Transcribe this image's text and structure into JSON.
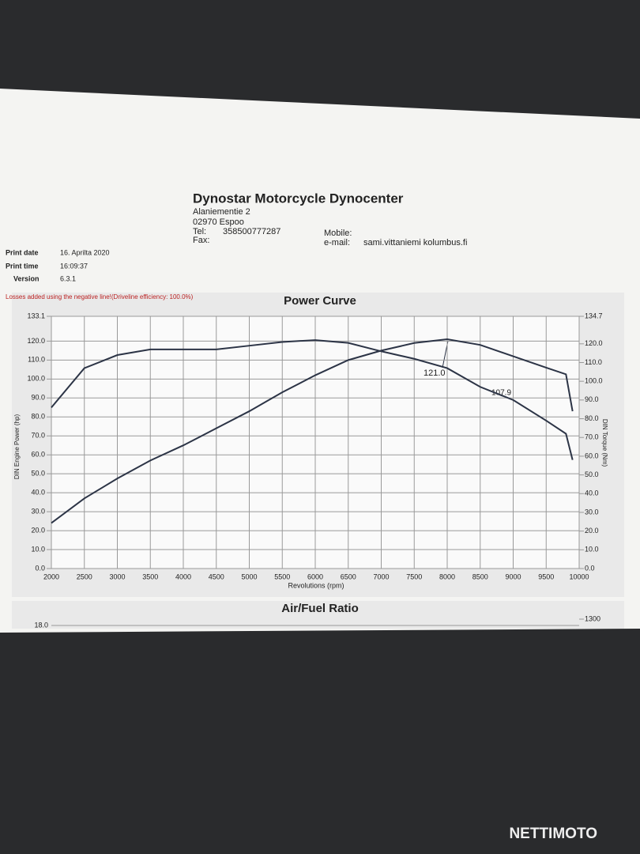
{
  "header": {
    "company": "Dynostar Motorcycle Dynocenter",
    "street": "Alaniementie  2",
    "city": "02970 Espoo",
    "tel_label": "Tel:",
    "tel": "358500777287",
    "fax_label": "Fax:",
    "mobile_label": "Mobile:",
    "email_label": "e-mail:",
    "email": "sami.vittaniemi kolumbus.fi"
  },
  "meta": {
    "rows": [
      [
        "Print date",
        "16. Aprilta 2020"
      ],
      [
        "Print time",
        "16:09:37"
      ],
      [
        "Version",
        "6.3.1"
      ]
    ]
  },
  "note": "Losses added using the negative line!(Driveline efficiency: 100.0%)",
  "watermark": "NETTIMOTO",
  "chart_data": [
    {
      "type": "line",
      "title": "Power Curve",
      "xlabel": "Revolutions (rpm)",
      "ylabel": "DIN Engine Power (hp)",
      "y2label": "DIN Torque (Nm)",
      "x": [
        2000,
        2500,
        3000,
        3500,
        4000,
        4500,
        5000,
        5500,
        6000,
        6500,
        7000,
        7500,
        8000,
        8500,
        9000,
        9500,
        9800,
        9900
      ],
      "series": [
        {
          "name": "Power",
          "color": "#2c3446",
          "values": [
            24,
            37,
            47.5,
            57,
            65,
            74,
            83,
            93,
            102,
            110,
            115,
            119,
            121,
            118,
            112,
            106,
            102.5,
            83
          ]
        },
        {
          "name": "Torque",
          "color": "#2c3446",
          "axis": "y2",
          "values": [
            86,
            107,
            114,
            117,
            117,
            117,
            119,
            121,
            122,
            120.5,
            116,
            112,
            107,
            97,
            90,
            79,
            72,
            58
          ]
        }
      ],
      "annotations": [
        "121.0",
        "107.9"
      ],
      "xlim": [
        2000,
        10000
      ],
      "xticks": [
        2000,
        2500,
        3000,
        3500,
        4000,
        4500,
        5000,
        5500,
        6000,
        6500,
        7000,
        7500,
        8000,
        8500,
        9000,
        9500,
        10000
      ],
      "ylim": [
        0,
        133.1
      ],
      "yticks": [
        {
          "value": 0,
          "label": "0.0"
        },
        {
          "value": 10,
          "label": "10.0"
        },
        {
          "value": 20,
          "label": "20.0"
        },
        {
          "value": 30,
          "label": "30.0"
        },
        {
          "value": 40,
          "label": "40.0"
        },
        {
          "value": 50,
          "label": "50.0"
        },
        {
          "value": 60,
          "label": "60.0"
        },
        {
          "value": 70,
          "label": "70.0"
        },
        {
          "value": 80,
          "label": "80.0"
        },
        {
          "value": 90,
          "label": "90.0"
        },
        {
          "value": 100,
          "label": "100.0"
        },
        {
          "value": 110,
          "label": "110.0"
        },
        {
          "value": 120,
          "label": "120.0"
        },
        133.1
      ],
      "y2lim": [
        0,
        134.7
      ],
      "y2ticks": [
        {
          "value": 0,
          "label": "0.0"
        },
        {
          "value": 10,
          "label": "10.0"
        },
        {
          "value": 20,
          "label": "20.0"
        },
        {
          "value": 30,
          "label": "30.0"
        },
        {
          "value": 40,
          "label": "40.0"
        },
        {
          "value": 50,
          "label": "50.0"
        },
        {
          "value": 60,
          "label": "60.0"
        },
        {
          "value": 70,
          "label": "70.0"
        },
        {
          "value": 80,
          "label": "80.0"
        },
        {
          "value": 90,
          "label": "90.0"
        },
        {
          "value": 100,
          "label": "100.0"
        },
        {
          "value": 110,
          "label": "110.0"
        },
        {
          "value": 120,
          "label": "120.0"
        },
        134.7
      ],
      "grid": true
    },
    {
      "type": "line",
      "title": "Air/Fuel Ratio",
      "yticks": [
        {
          "value": 18,
          "label": "18.0"
        }
      ],
      "y2ticks": [
        1300
      ]
    }
  ]
}
